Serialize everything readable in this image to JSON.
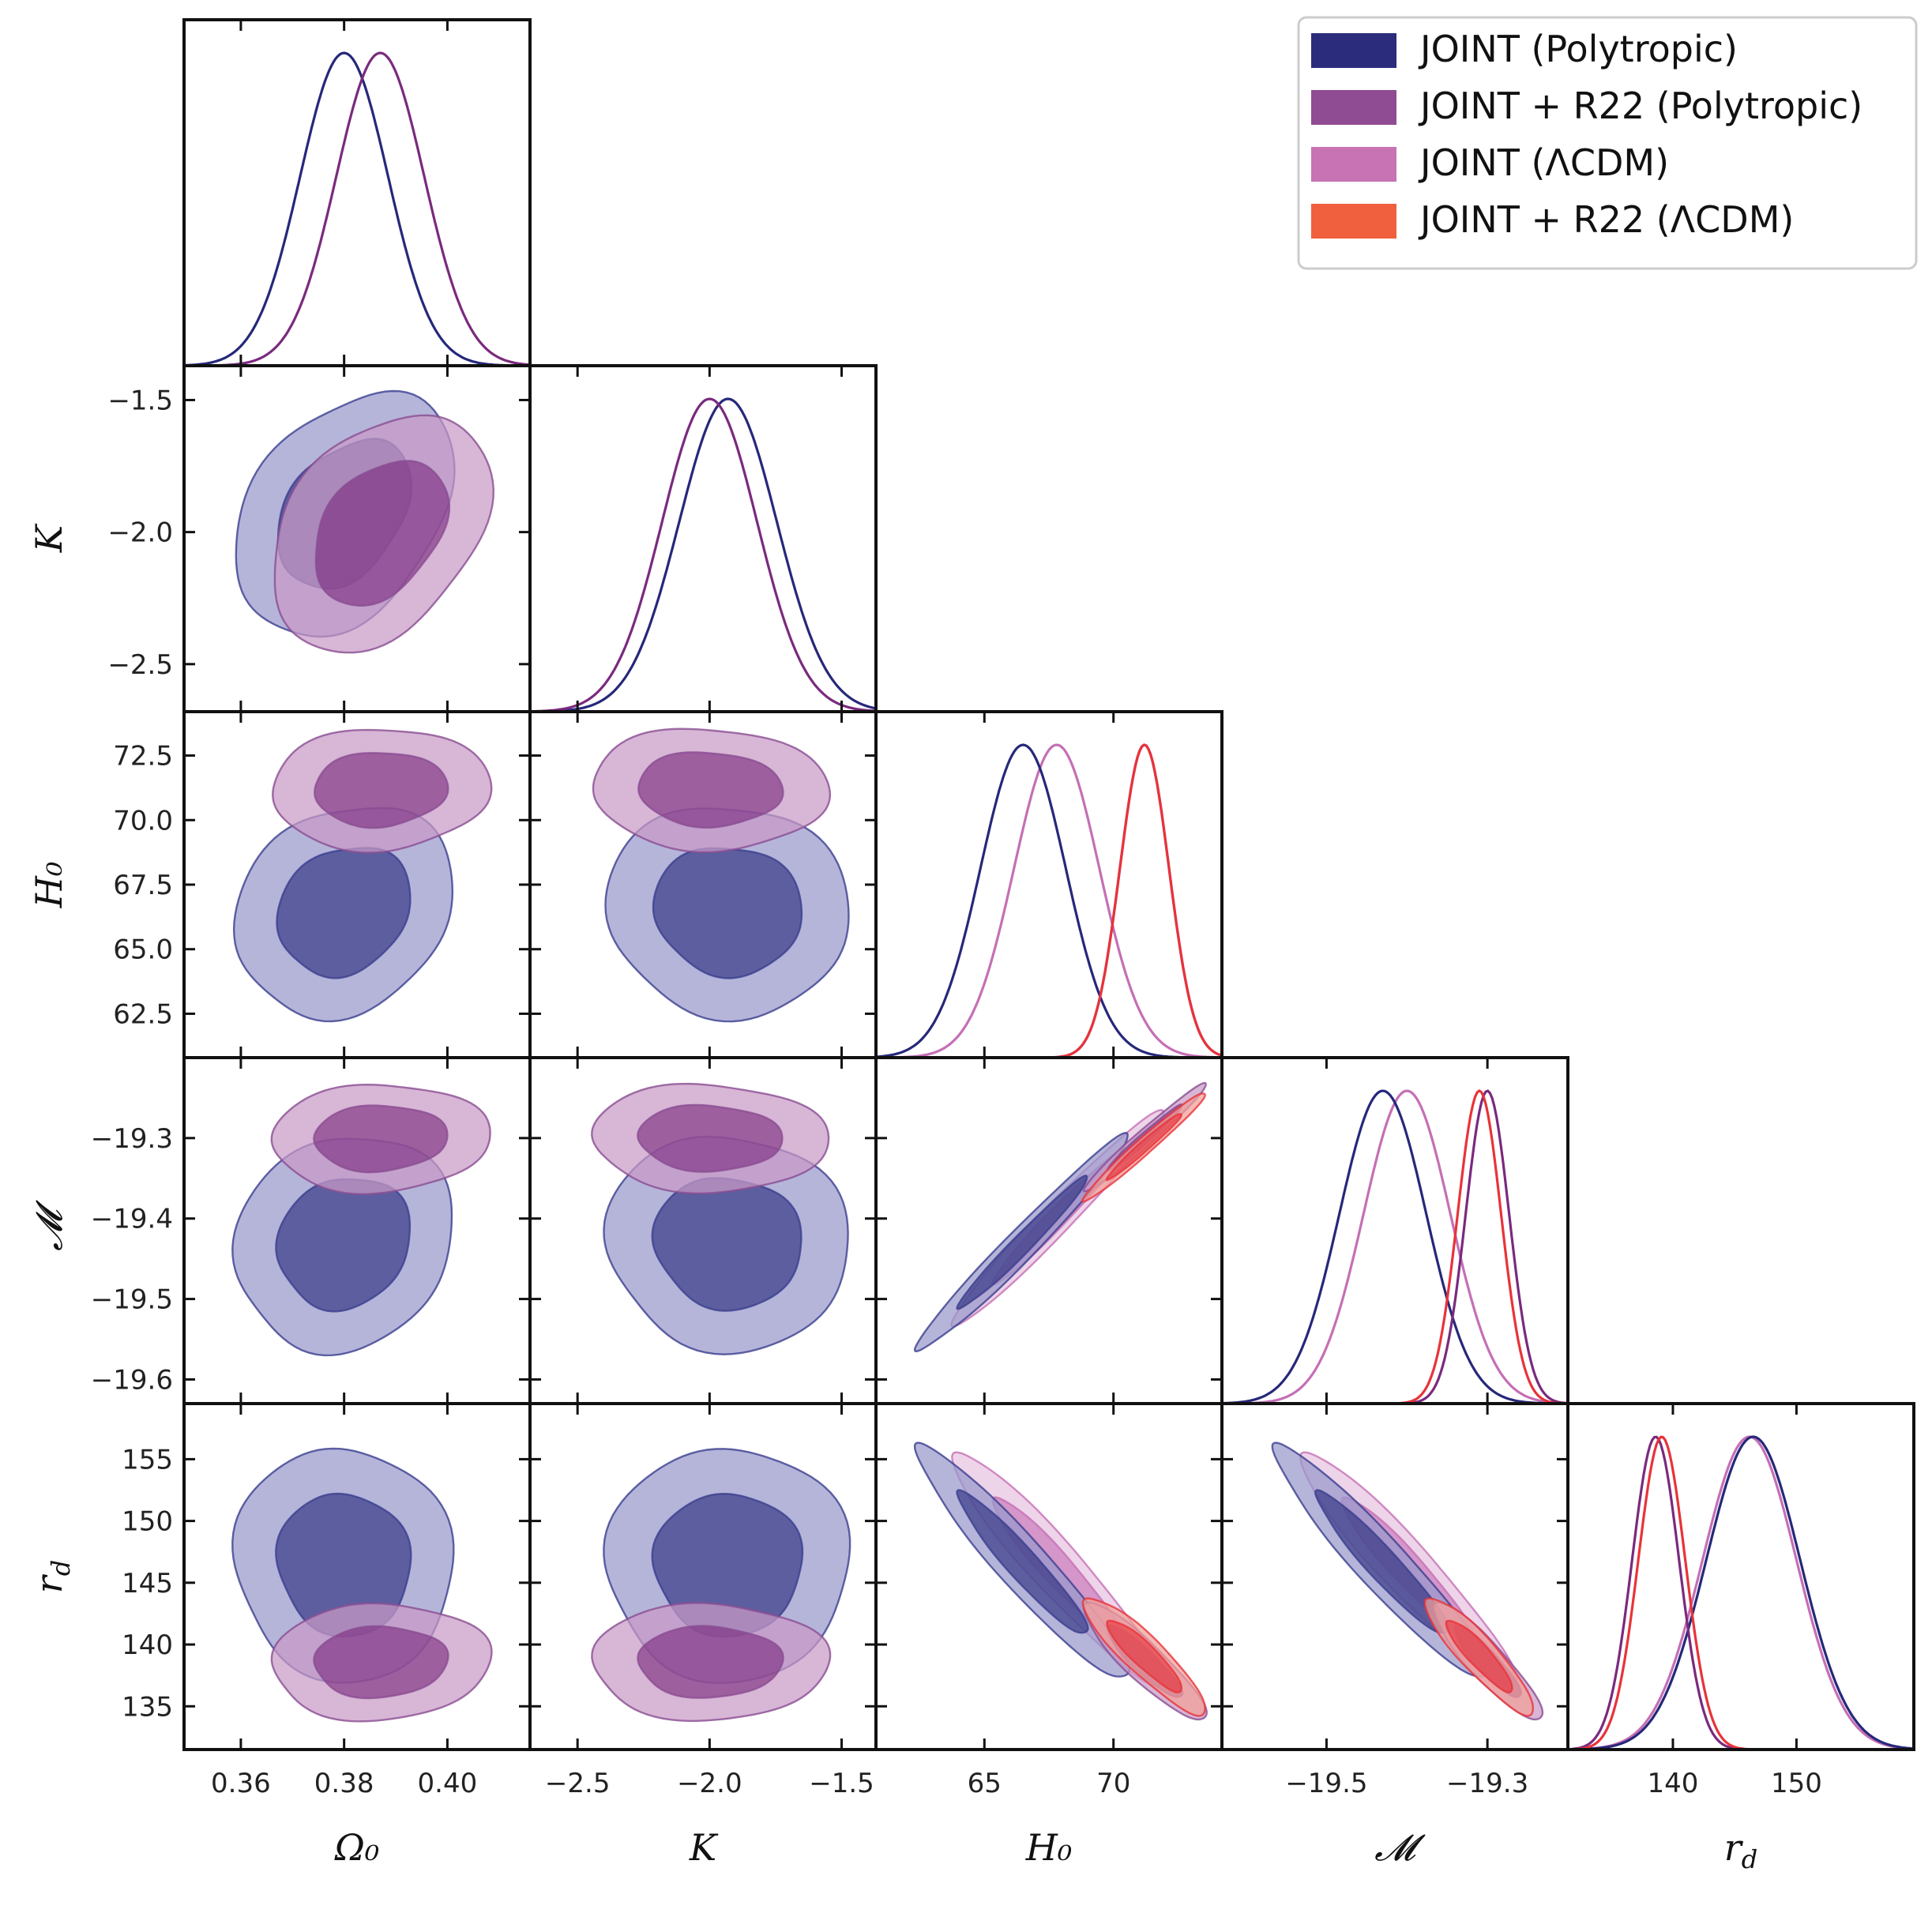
{
  "chart_data": {
    "type": "corner",
    "parameters": [
      {
        "key": "om",
        "label": "Ω₀",
        "range": [
          0.349,
          0.416
        ],
        "ticks": [
          0.36,
          0.38,
          0.4
        ],
        "tick_labels": [
          "0.36",
          "0.38",
          "0.40"
        ]
      },
      {
        "key": "k",
        "label": "K",
        "range": [
          -2.68,
          -1.37
        ],
        "ticks": [
          -2.5,
          -2.0,
          -1.5
        ],
        "tick_labels": [
          "−2.5",
          "−2.0",
          "−1.5"
        ]
      },
      {
        "key": "h0",
        "label": "H₀",
        "range": [
          60.8,
          74.2
        ],
        "ticks": [
          62.5,
          65.0,
          67.5,
          70.0,
          72.5
        ],
        "tick_labels": [
          "62.5",
          "65.0",
          "67.5",
          "70.0",
          "72.5"
        ]
      },
      {
        "key": "m",
        "label": "𝓜",
        "range": [
          -19.63,
          -19.2
        ],
        "ticks": [
          -19.6,
          -19.5,
          -19.4,
          -19.3
        ],
        "tick_labels": [
          "−19.6",
          "−19.5",
          "−19.4",
          "−19.3"
        ]
      },
      {
        "key": "rd",
        "label": "r_d",
        "range": [
          131.5,
          159.5
        ],
        "ticks": [
          135,
          140,
          145,
          150,
          155
        ],
        "tick_labels": [
          "135",
          "140",
          "145",
          "150",
          "155"
        ]
      }
    ],
    "x_tick_overrides": {
      "h0": {
        "ticks": [
          65,
          70
        ],
        "tick_labels": [
          "65",
          "70"
        ]
      },
      "m": {
        "ticks": [
          -19.5,
          -19.3
        ],
        "tick_labels": [
          "−19.5",
          "−19.3"
        ]
      },
      "rd": {
        "ticks": [
          140,
          150
        ],
        "tick_labels": [
          "140",
          "150"
        ]
      }
    },
    "series": [
      {
        "name": "JOINT (Polytropic)",
        "color": "#26287a",
        "fill": "#26287a",
        "fill_outer": "#9899cc",
        "line": "#3b3e8f",
        "mean": {
          "om": 0.38,
          "k": -1.93,
          "h0": 66.5,
          "m": -19.43,
          "rd": 146.5
        },
        "sigma": {
          "om": 0.0085,
          "k": 0.185,
          "h0": 1.65,
          "m": 0.054,
          "rd": 3.8
        },
        "corr": {
          "om-k": 0.35,
          "om-h0": 0.18,
          "om-m": 0.12,
          "om-rd": -0.05,
          "k-h0": -0.05,
          "k-m": -0.05,
          "k-rd": 0.0,
          "h0-m": 0.98,
          "h0-rd": -0.95,
          "m-rd": -0.95
        }
      },
      {
        "name": "JOINT + R22 (Polytropic)",
        "color": "#7a2a7e",
        "fill": "#7a2a7e",
        "fill_outer": "#c99ac6",
        "line": "#8a4d92",
        "mean": {
          "om": 0.387,
          "k": -2.0,
          "h0": 71.2,
          "m": -19.3,
          "rd": 138.6
        },
        "sigma": {
          "om": 0.0085,
          "k": 0.18,
          "h0": 0.95,
          "m": 0.027,
          "rd": 1.9
        },
        "corr": {
          "om-k": 0.35,
          "om-h0": 0.05,
          "om-m": 0.05,
          "om-rd": 0.05,
          "k-h0": -0.05,
          "k-m": -0.05,
          "k-rd": 0.0,
          "h0-m": 0.98,
          "h0-rd": -0.9,
          "m-rd": -0.9
        }
      },
      {
        "name": "JOINT (ΛCDM)",
        "color": "#c56fb5",
        "fill": "#c56fb5",
        "fill_outer": "#e8c3e1",
        "line": "#c56fb5",
        "mean": {
          "h0": 67.8,
          "m": -19.4,
          "rd": 146.2
        },
        "sigma": {
          "h0": 1.65,
          "m": 0.054,
          "rd": 3.8
        },
        "corr": {
          "h0-m": 0.98,
          "h0-rd": -0.95,
          "m-rd": -0.95
        }
      },
      {
        "name": "JOINT + R22 (ΛCDM)",
        "color": "#e8333a",
        "fill": "#e8333a",
        "fill_outer": "#f2a097",
        "line": "#e8333a",
        "mean": {
          "h0": 71.2,
          "m": -19.31,
          "rd": 139.1
        },
        "sigma": {
          "h0": 0.95,
          "m": 0.027,
          "rd": 1.9
        },
        "corr": {
          "h0-m": 0.98,
          "h0-rd": -0.9,
          "m-rd": -0.9
        }
      }
    ],
    "legend_position": "top-right",
    "grid": false
  },
  "legend": {
    "items": [
      {
        "label": "JOINT (Polytropic)",
        "color": "#2b2c7c"
      },
      {
        "label": "JOINT + R22 (Polytropic)",
        "color": "#8f4c93"
      },
      {
        "label": "JOINT (ΛCDM)",
        "color": "#c773b4"
      },
      {
        "label": "JOINT + R22 (ΛCDM)",
        "color": "#f0603f"
      }
    ]
  }
}
